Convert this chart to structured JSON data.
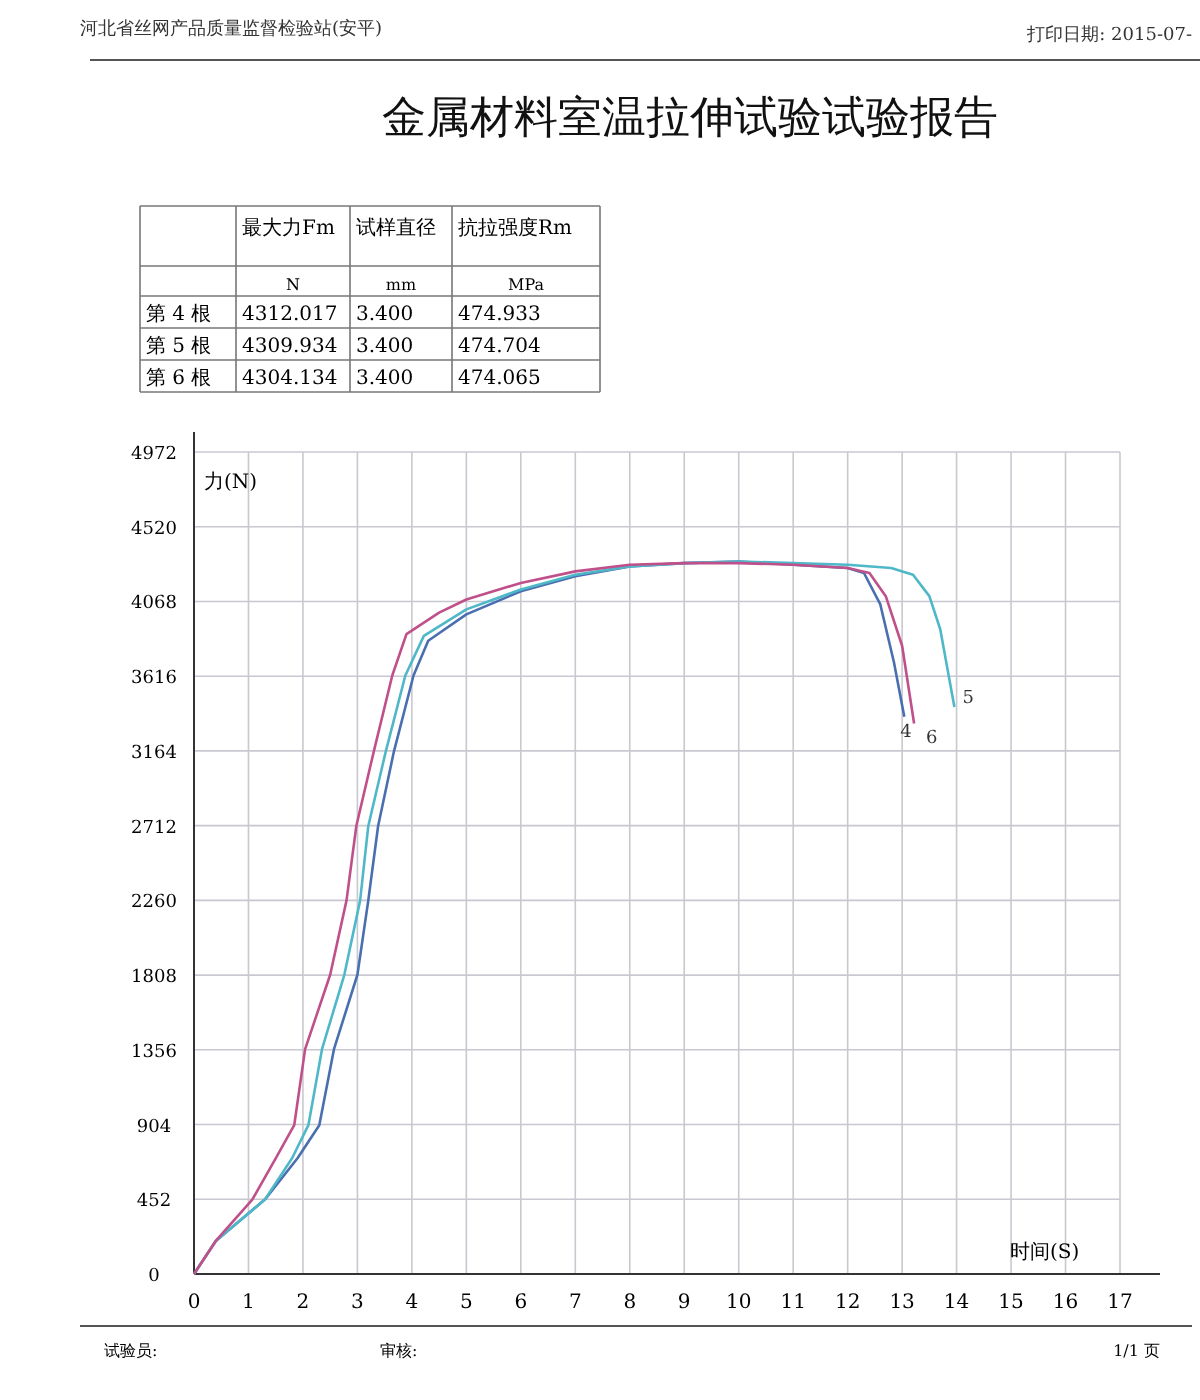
{
  "chart_data": {
    "type": "line",
    "title": "金属材料室温拉伸试验试验报告",
    "xlabel": "时间(S)",
    "ylabel": "力(N)",
    "xlim": [
      0,
      17
    ],
    "xticks": [
      0,
      1,
      2,
      3,
      4,
      5,
      6,
      7,
      8,
      9,
      10,
      11,
      12,
      13,
      14,
      15,
      16,
      17
    ],
    "ylim": [
      0,
      4972
    ],
    "yticks": [
      0,
      452,
      904,
      1356,
      1808,
      2260,
      2712,
      3164,
      3616,
      4068,
      4520,
      4972
    ],
    "grid": true,
    "marker": "none",
    "line_style": "solid",
    "annotations": [
      "河北省丝网产品质量监督检验站(安平)",
      "打印日期: 2015-07-",
      "最大力Fm",
      "试样直径",
      "抗拉强度Rm",
      "N",
      "mm",
      "MPa",
      "第 4 根",
      "4312.017",
      "3.400",
      "474.933",
      "第 5 根",
      "4309.934",
      "3.400",
      "474.704",
      "第 6 根",
      "4304.134",
      "3.400",
      "474.065",
      "试验员:",
      "审核:",
      "1/1 页"
    ],
    "series": [
      {
        "name": "4",
        "color": "#4a6fb0",
        "x": [
          0,
          0.4,
          1.3,
          1.9,
          2.3,
          2.57,
          3.0,
          3.2,
          3.38,
          3.67,
          4.03,
          4.3,
          5,
          6,
          7,
          8,
          9,
          10,
          11,
          12,
          12.3,
          12.6,
          12.85,
          13.04
        ],
        "values": [
          0,
          200,
          450,
          700,
          900,
          1360,
          1810,
          2260,
          2710,
          3160,
          3620,
          3830,
          3990,
          4130,
          4220,
          4280,
          4300,
          4310,
          4290,
          4270,
          4240,
          4050,
          3700,
          3370
        ]
      },
      {
        "name": "5",
        "color": "#4fb8c8",
        "x": [
          0,
          0.4,
          1.3,
          1.8,
          2.1,
          2.35,
          2.76,
          3.05,
          3.2,
          3.52,
          3.88,
          4.22,
          5,
          6,
          7,
          8,
          9,
          10,
          11,
          12,
          12.8,
          13.2,
          13.5,
          13.7,
          13.96
        ],
        "values": [
          0,
          200,
          450,
          700,
          900,
          1360,
          1810,
          2260,
          2710,
          3160,
          3620,
          3860,
          4020,
          4140,
          4230,
          4280,
          4300,
          4310,
          4300,
          4290,
          4270,
          4230,
          4100,
          3900,
          3430
        ]
      },
      {
        "name": "6",
        "color": "#c0508a",
        "x": [
          0,
          0.4,
          1.07,
          1.5,
          1.84,
          2.04,
          2.5,
          2.8,
          2.98,
          3.3,
          3.64,
          3.9,
          4.5,
          5,
          6,
          7,
          8,
          9,
          10,
          11,
          12,
          12.4,
          12.7,
          13,
          13.22
        ],
        "values": [
          0,
          200,
          450,
          700,
          900,
          1360,
          1810,
          2260,
          2710,
          3160,
          3620,
          3870,
          4000,
          4080,
          4180,
          4250,
          4290,
          4300,
          4300,
          4290,
          4270,
          4240,
          4100,
          3800,
          3330
        ]
      }
    ]
  }
}
